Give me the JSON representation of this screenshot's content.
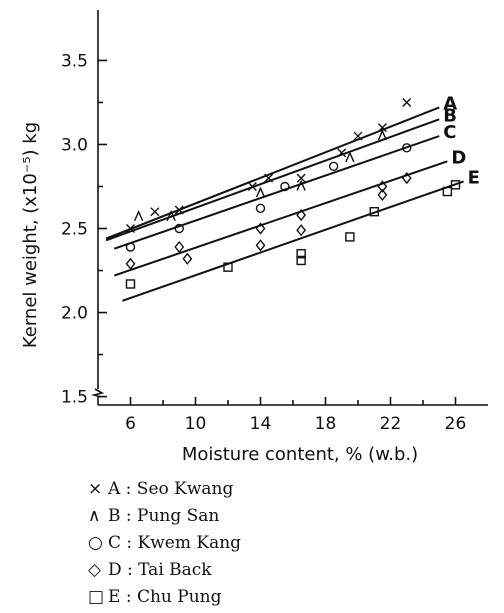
{
  "chart_data": {
    "type": "scatter",
    "title": "",
    "xlabel": "Moisture content, % (w.b.)",
    "ylabel": "Kernel weight, (x10⁻⁵) kg",
    "xlim": [
      4,
      28
    ],
    "ylim": [
      1.45,
      3.8
    ],
    "x_ticks": [
      "6",
      "10",
      "14",
      "18",
      "22",
      "26"
    ],
    "y_ticks": [
      "1.5",
      "2.0",
      "2.5",
      "3.0",
      "3.5"
    ],
    "y_axis_break": true,
    "grid": false,
    "legend_placement": "below",
    "series": [
      {
        "name": "A",
        "marker": "x",
        "fit": [
          [
            4.5,
            2.44
          ],
          [
            25,
            3.22
          ]
        ],
        "points": [
          [
            6,
            2.5
          ],
          [
            7.5,
            2.6
          ],
          [
            9,
            2.61
          ],
          [
            13.5,
            2.75
          ],
          [
            14.5,
            2.8
          ],
          [
            16.5,
            2.8
          ],
          [
            19,
            2.95
          ],
          [
            20,
            3.05
          ],
          [
            21.5,
            3.1
          ],
          [
            23,
            3.25
          ]
        ]
      },
      {
        "name": "B",
        "marker": "^",
        "fit": [
          [
            4.5,
            2.43
          ],
          [
            25,
            3.15
          ]
        ],
        "points": [
          [
            6.5,
            2.57
          ],
          [
            8.5,
            2.57
          ],
          [
            14,
            2.71
          ],
          [
            16.5,
            2.75
          ],
          [
            19.5,
            2.92
          ],
          [
            21.5,
            3.05
          ]
        ]
      },
      {
        "name": "C",
        "marker": "o",
        "fit": [
          [
            5,
            2.38
          ],
          [
            25,
            3.05
          ]
        ],
        "points": [
          [
            6,
            2.39
          ],
          [
            9,
            2.5
          ],
          [
            14,
            2.62
          ],
          [
            15.5,
            2.75
          ],
          [
            18.5,
            2.87
          ],
          [
            23,
            2.98
          ]
        ]
      },
      {
        "name": "D",
        "marker": "diamond",
        "fit": [
          [
            5,
            2.22
          ],
          [
            25.5,
            2.9
          ]
        ],
        "points": [
          [
            6,
            2.29
          ],
          [
            9,
            2.39
          ],
          [
            9.5,
            2.32
          ],
          [
            14,
            2.5
          ],
          [
            14,
            2.4
          ],
          [
            16.5,
            2.49
          ],
          [
            16.5,
            2.58
          ],
          [
            21.5,
            2.7
          ],
          [
            21.5,
            2.75
          ],
          [
            23,
            2.8
          ]
        ]
      },
      {
        "name": "E",
        "marker": "s",
        "fit": [
          [
            5.5,
            2.07
          ],
          [
            26.5,
            2.78
          ]
        ],
        "points": [
          [
            6,
            2.17
          ],
          [
            12,
            2.27
          ],
          [
            16.5,
            2.35
          ],
          [
            16.5,
            2.31
          ],
          [
            19.5,
            2.45
          ],
          [
            21,
            2.6
          ],
          [
            25.5,
            2.72
          ],
          [
            26,
            2.76
          ]
        ]
      }
    ]
  },
  "legend": [
    {
      "symbol": "×",
      "text": "A : Seo Kwang"
    },
    {
      "symbol": "∧",
      "text": "B : Pung San"
    },
    {
      "symbol": "○",
      "text": "C : Kwem Kang"
    },
    {
      "symbol": "◇",
      "text": "D : Tai Back"
    },
    {
      "symbol": "□",
      "text": "E : Chu Pung"
    }
  ]
}
